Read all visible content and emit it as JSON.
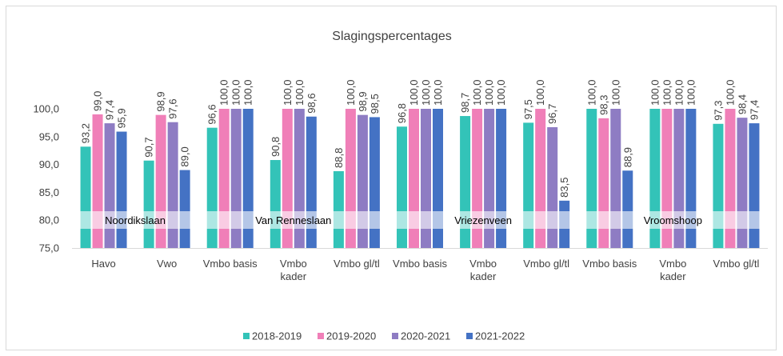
{
  "chart_data": {
    "type": "bar",
    "title": "Slagingspercentages",
    "categories": [
      "Havo",
      "Vwo",
      "Vmbo basis",
      "Vmbo\nkader",
      "Vmbo gl/tl",
      "Vmbo basis",
      "Vmbo\nkader",
      "Vmbo gl/tl",
      "Vmbo basis",
      "Vmbo\nkader",
      "Vmbo gl/tl"
    ],
    "group_labels": [
      "Noordikslaan",
      "Van Renneslaan",
      "Vriezenveen",
      "Vroomshoop"
    ],
    "group_sizes": [
      2,
      3,
      3,
      3
    ],
    "series": [
      {
        "name": "2018-2019",
        "color": "#33c3b8",
        "values": [
          93.2,
          90.7,
          96.6,
          90.8,
          88.8,
          96.8,
          98.7,
          97.5,
          100,
          100,
          97.3
        ],
        "value_labels": [
          "93,2",
          "90,7",
          "96,6",
          "90,8",
          "88,8",
          "96,8",
          "98,7",
          "97,5",
          "100,0",
          "100,0",
          "97,3"
        ]
      },
      {
        "name": "2019-2020",
        "color": "#f07fb8",
        "values": [
          99,
          98.9,
          100,
          100,
          100,
          100,
          100,
          100,
          98.3,
          100,
          100
        ],
        "value_labels": [
          "99,0",
          "98,9",
          "100,0",
          "100,0",
          "100,0",
          "100,0",
          "100,0",
          "100,0",
          "98,3",
          "100,0",
          "100,0"
        ]
      },
      {
        "name": "2020-2021",
        "color": "#8e7cc3",
        "values": [
          97.4,
          97.6,
          100,
          100,
          98.9,
          100,
          100,
          96.7,
          100,
          100,
          98.4
        ],
        "value_labels": [
          "97,4",
          "97,6",
          "100,0",
          "100,0",
          "98,9",
          "100,0",
          "100,0",
          "96,7",
          "100,0",
          "100,0",
          "98,4"
        ]
      },
      {
        "name": "2021-2022",
        "color": "#4472c4",
        "values": [
          95.9,
          89,
          100,
          98.6,
          98.5,
          100,
          100,
          83.5,
          88.9,
          100,
          97.4
        ],
        "value_labels": [
          "95,9",
          "89,0",
          "100,0",
          "98,6",
          "98,5",
          "100,0",
          "100,0",
          "83,5",
          "88,9",
          "100,0",
          "97,4"
        ]
      }
    ],
    "ylim": [
      75,
      100
    ],
    "yticks": [
      {
        "value": 75,
        "label": "75,0"
      },
      {
        "value": 80,
        "label": "80,0"
      },
      {
        "value": 85,
        "label": "85,0"
      },
      {
        "value": 90,
        "label": "90,0"
      },
      {
        "value": 95,
        "label": "95,0"
      },
      {
        "value": 100,
        "label": "100,0"
      }
    ],
    "grid": false,
    "legend": "bottom"
  }
}
